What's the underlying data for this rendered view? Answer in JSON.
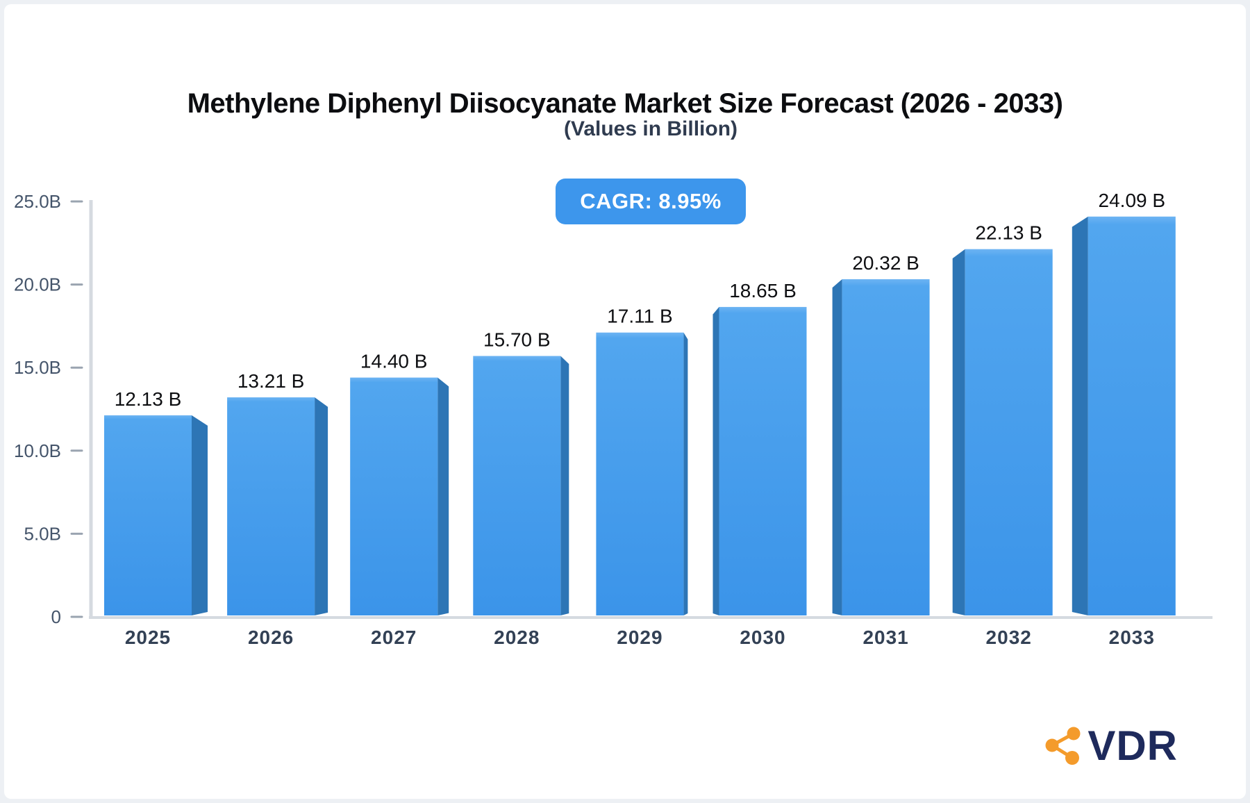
{
  "header": {
    "title": "Methylene Diphenyl Diisocyanate Market Size Forecast (2026 - 2033)",
    "subtitle": "(Values in Billion)"
  },
  "chart_data": {
    "type": "bar",
    "title": "Methylene Diphenyl Diisocyanate Market Size Forecast (2026 - 2033)",
    "subtitle": "(Values in Billion)",
    "annotation": "CAGR: 8.95%",
    "categories": [
      "2025",
      "2026",
      "2027",
      "2028",
      "2029",
      "2030",
      "2031",
      "2032",
      "2033"
    ],
    "values": [
      12.13,
      13.21,
      14.4,
      15.7,
      17.11,
      18.65,
      20.32,
      22.13,
      24.09
    ],
    "value_labels": [
      "12.13 B",
      "13.21 B",
      "14.40 B",
      "15.70 B",
      "17.11 B",
      "18.65 B",
      "20.32 B",
      "22.13 B",
      "24.09 B"
    ],
    "value_suffix": "B",
    "xlabel": "",
    "ylabel": "",
    "ylim": [
      0,
      25
    ],
    "ytick_values": [
      0,
      5,
      10,
      15,
      20,
      25
    ],
    "ytick_labels": [
      "0",
      "5.0B",
      "10.0B",
      "15.0B",
      "20.0B",
      "25.0B"
    ],
    "grid": false,
    "legend": false,
    "style": "3d-column",
    "colors": {
      "bar_top": "#63aff2",
      "bar_main_light": "#4da3ee",
      "bar_main_dark": "#3b94e9",
      "bar_side": "#2d75b5",
      "axis_line": "#d5dae0",
      "tick_dash": "#9aa4b0",
      "tick_label": "#44546a",
      "x_label": "#334155",
      "value_label": "#0e0f12",
      "badge_bg": "#3d96ec",
      "badge_text": "#ffffff"
    }
  },
  "footer": {
    "logo_text": "VDR",
    "logo_icon": "share-network-icon",
    "logo_icon_color": "#f49b2b",
    "logo_text_color": "#1e2a5c"
  }
}
